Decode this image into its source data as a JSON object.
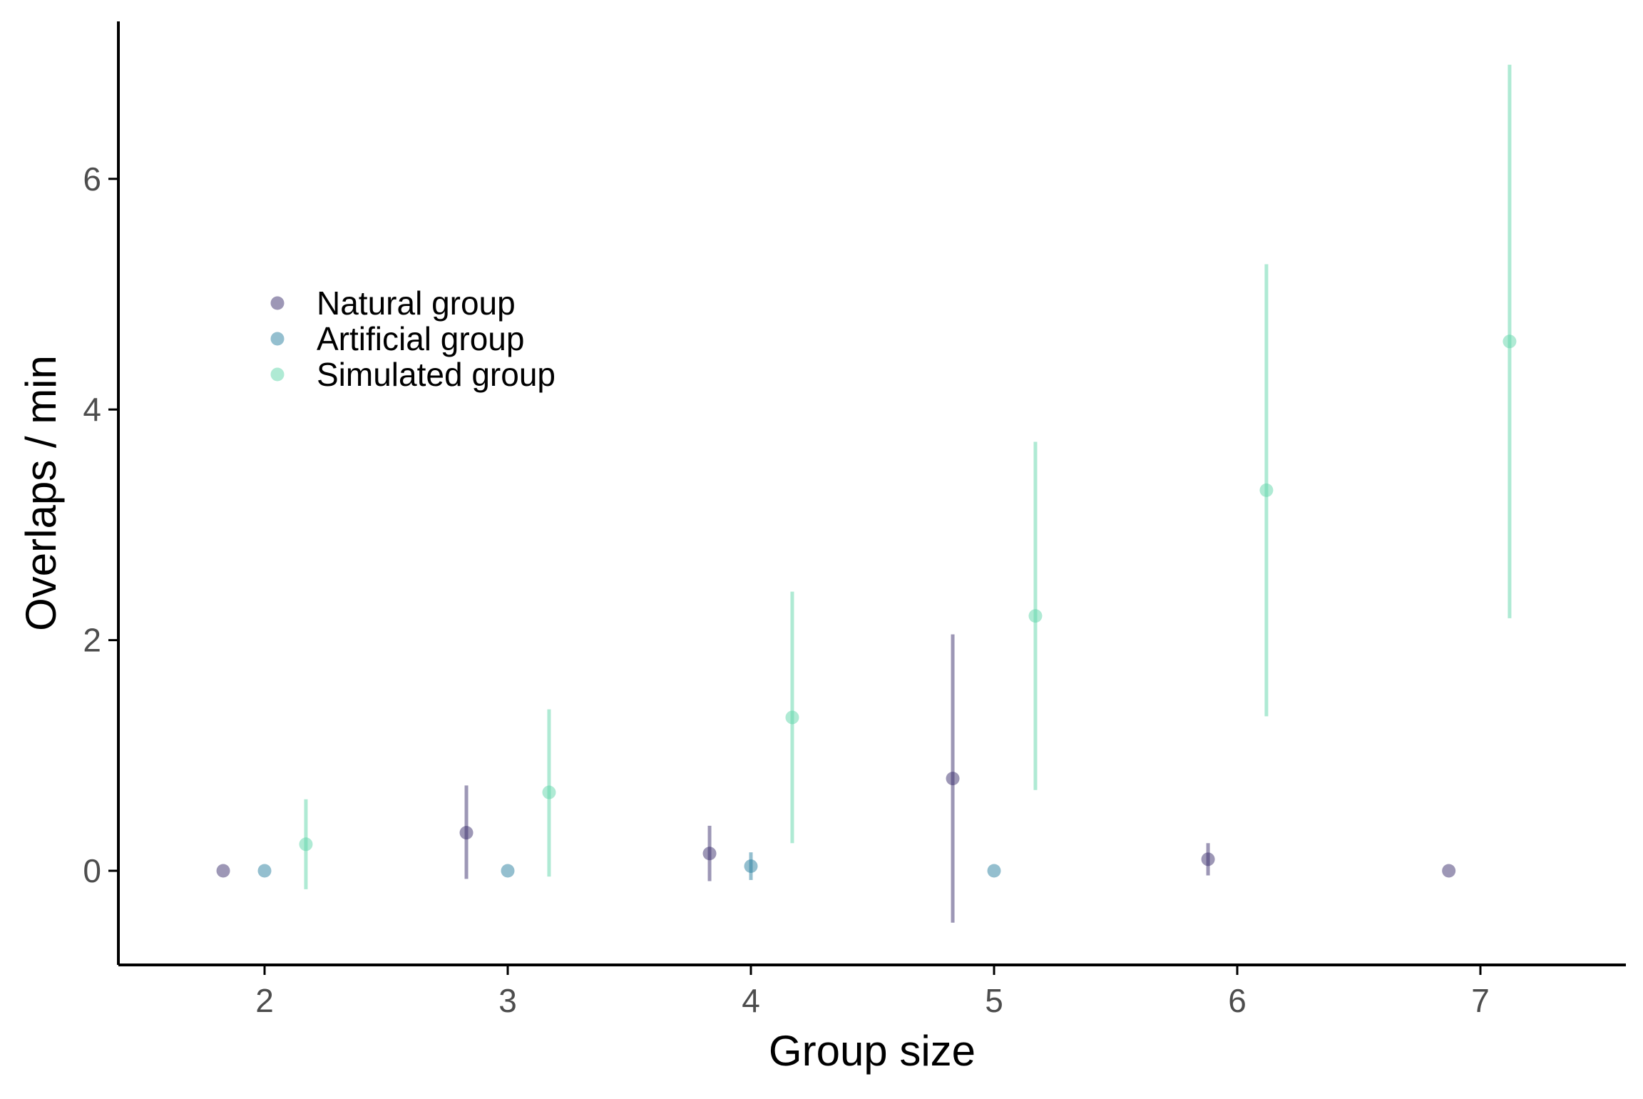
{
  "chart_data": {
    "type": "scatter",
    "subtype": "point-with-error-bars",
    "title": "",
    "xlabel": "Group size",
    "ylabel": "Overlaps / min",
    "xlim": [
      1.4,
      7.6
    ],
    "ylim": [
      -0.8,
      7.3
    ],
    "x_ticks": [
      2,
      3,
      4,
      5,
      6,
      7
    ],
    "x_tick_labels": [
      "2",
      "3",
      "4",
      "5",
      "6",
      "7"
    ],
    "y_ticks": [
      0,
      2,
      4,
      6
    ],
    "y_tick_labels": [
      "0",
      "2",
      "4",
      "6"
    ],
    "grid": false,
    "legend_position": "upper-left inside",
    "series": [
      {
        "name": "Natural group",
        "color": "#3b2f6e",
        "points": [
          {
            "group_size": 2,
            "x": 1.83,
            "y": 0.0,
            "lower": null,
            "upper": null
          },
          {
            "group_size": 3,
            "x": 2.83,
            "y": 0.33,
            "lower": -0.07,
            "upper": 0.74
          },
          {
            "group_size": 4,
            "x": 3.83,
            "y": 0.15,
            "lower": -0.09,
            "upper": 0.39
          },
          {
            "group_size": 5,
            "x": 4.83,
            "y": 0.8,
            "lower": -0.45,
            "upper": 2.05
          },
          {
            "group_size": 6,
            "x": 5.88,
            "y": 0.1,
            "lower": -0.04,
            "upper": 0.24
          },
          {
            "group_size": 7,
            "x": 6.87,
            "y": 0.0,
            "lower": null,
            "upper": null
          }
        ]
      },
      {
        "name": "Artificial group",
        "color": "#2a7fa0",
        "points": [
          {
            "group_size": 2,
            "x": 2.0,
            "y": 0.0,
            "lower": null,
            "upper": null
          },
          {
            "group_size": 3,
            "x": 3.0,
            "y": 0.0,
            "lower": null,
            "upper": null
          },
          {
            "group_size": 4,
            "x": 4.0,
            "y": 0.04,
            "lower": -0.08,
            "upper": 0.16
          },
          {
            "group_size": 5,
            "x": 5.0,
            "y": 0.0,
            "lower": null,
            "upper": null
          }
        ]
      },
      {
        "name": "Simulated group",
        "color": "#5fd6aa",
        "points": [
          {
            "group_size": 2,
            "x": 2.17,
            "y": 0.23,
            "lower": -0.16,
            "upper": 0.62
          },
          {
            "group_size": 3,
            "x": 3.17,
            "y": 0.68,
            "lower": -0.05,
            "upper": 1.4
          },
          {
            "group_size": 4,
            "x": 4.17,
            "y": 1.33,
            "lower": 0.24,
            "upper": 2.42
          },
          {
            "group_size": 5,
            "x": 5.17,
            "y": 2.21,
            "lower": 0.7,
            "upper": 3.72
          },
          {
            "group_size": 6,
            "x": 6.12,
            "y": 3.3,
            "lower": 1.34,
            "upper": 5.26
          },
          {
            "group_size": 7,
            "x": 7.12,
            "y": 4.59,
            "lower": 2.19,
            "upper": 6.99
          }
        ]
      }
    ]
  }
}
